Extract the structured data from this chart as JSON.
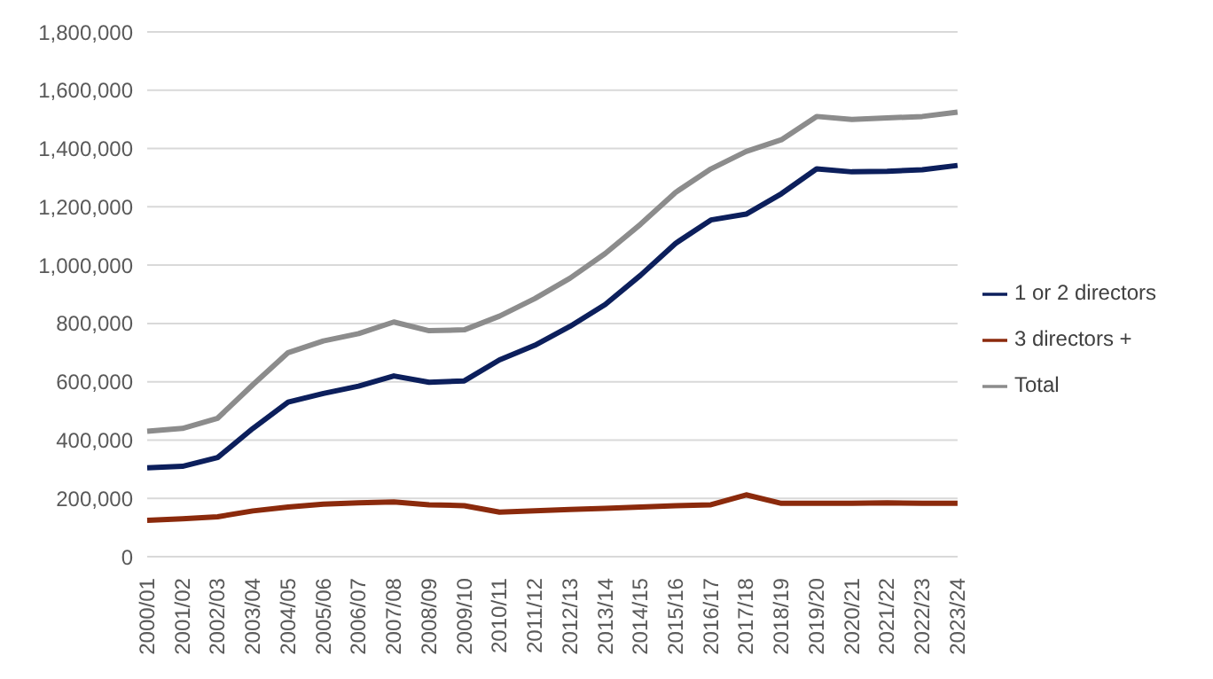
{
  "chart_data": {
    "type": "line",
    "categories": [
      "2000/01",
      "2001/02",
      "2002/03",
      "2003/04",
      "2004/05",
      "2005/06",
      "2006/07",
      "2007/08",
      "2008/09",
      "2009/10",
      "2010/11",
      "2011/12",
      "2012/13",
      "2013/14",
      "2014/15",
      "2015/16",
      "2016/17",
      "2017/18",
      "2018/19",
      "2019/20",
      "2020/21",
      "2021/22",
      "2022/23",
      "2023/24"
    ],
    "series": [
      {
        "name": "1 or 2 directors",
        "color": "#0c1f5c",
        "values": [
          305000,
          310000,
          340000,
          440000,
          530000,
          560000,
          585000,
          620000,
          598000,
          603000,
          675000,
          725000,
          790000,
          865000,
          965000,
          1075000,
          1155000,
          1175000,
          1245000,
          1330000,
          1320000,
          1322000,
          1327000,
          1342000
        ]
      },
      {
        "name": "3 directors +",
        "color": "#8b2a0c",
        "values": [
          125000,
          130000,
          137000,
          157000,
          170000,
          180000,
          185000,
          188000,
          178000,
          175000,
          153000,
          157000,
          162000,
          166000,
          170000,
          175000,
          178000,
          212000,
          183000,
          183000,
          183000,
          185000,
          183000,
          183000
        ]
      },
      {
        "name": "Total",
        "color": "#8c8c8c",
        "values": [
          430000,
          440000,
          475000,
          590000,
          700000,
          740000,
          765000,
          805000,
          775000,
          778000,
          825000,
          885000,
          955000,
          1040000,
          1140000,
          1250000,
          1330000,
          1390000,
          1430000,
          1510000,
          1500000,
          1505000,
          1510000,
          1525000
        ]
      }
    ],
    "ylim": [
      0,
      1800000
    ],
    "yticks": [
      0,
      {
        "value": 200000,
        "label": "200,000"
      },
      {
        "value": 400000,
        "label": "400,000"
      },
      {
        "value": 600000,
        "label": "600,000"
      },
      {
        "value": 800000,
        "label": "800,000"
      },
      {
        "value": 1000000,
        "label": "1,000,000"
      },
      {
        "value": 1200000,
        "label": "1,200,000"
      },
      {
        "value": 1400000,
        "label": "1,400,000"
      },
      {
        "value": 1600000,
        "label": "1,600,000"
      },
      {
        "value": 1800000,
        "label": "1,800,000"
      }
    ],
    "grid": "y",
    "legend": "right",
    "marker": "none",
    "line_style": "solid"
  }
}
